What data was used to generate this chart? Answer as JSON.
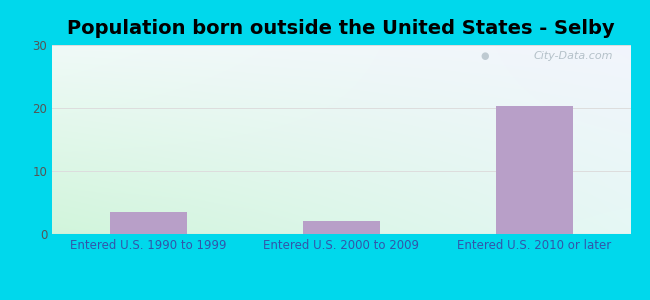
{
  "title": "Population born outside the United States - Selby",
  "categories": [
    "Entered U.S. 1990 to 1999",
    "Entered U.S. 2000 to 2009",
    "Entered U.S. 2010 or later"
  ],
  "values": [
    3.5,
    2.0,
    20.3
  ],
  "bar_color": "#b89fc8",
  "ylim": [
    0,
    30
  ],
  "yticks": [
    0,
    10,
    20,
    30
  ],
  "bg_outer": "#00d8ec",
  "title_fontsize": 14,
  "tick_label_fontsize": 8.5,
  "xlabel_color": "#3355aa",
  "ylabel_color": "#555555",
  "watermark": "City-Data.com",
  "grid_color": "#dddddd",
  "gradient_topleft": [
    0.94,
    0.98,
    0.97,
    1.0
  ],
  "gradient_topright": [
    0.95,
    0.96,
    0.99,
    1.0
  ],
  "gradient_bottomleft": [
    0.82,
    0.96,
    0.86,
    1.0
  ],
  "gradient_bottomright": [
    0.9,
    0.97,
    0.96,
    1.0
  ]
}
